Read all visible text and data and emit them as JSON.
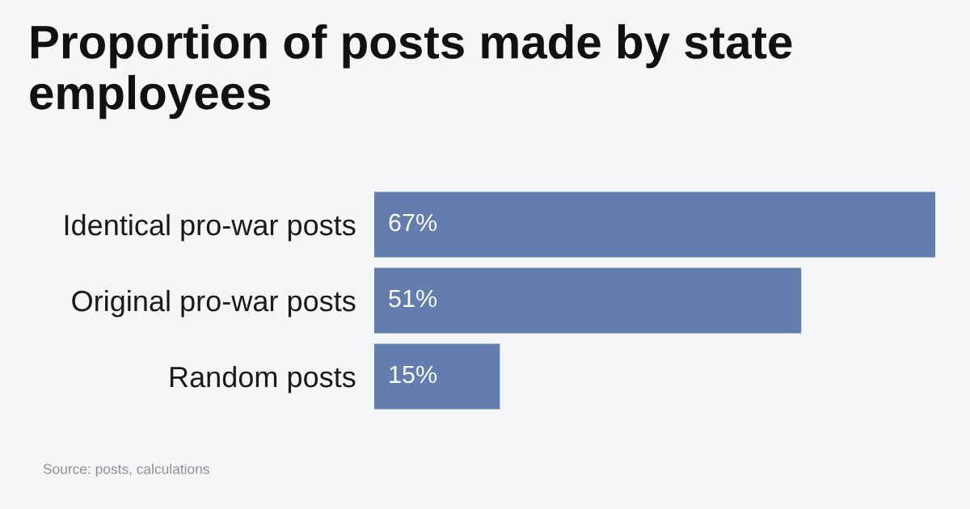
{
  "chart_data": {
    "type": "bar",
    "orientation": "horizontal",
    "title": "Proportion of posts made by state employees",
    "categories": [
      "Identical pro-war posts",
      "Original pro-war posts",
      "Random posts"
    ],
    "values": [
      67,
      51,
      15
    ],
    "value_labels": [
      "67%",
      "51%",
      "15%"
    ],
    "color": "#647daf",
    "xlim": [
      0,
      67
    ],
    "tick_labels": "y",
    "grid": false,
    "legend": false,
    "annotations": [
      "Source: posts, calculations"
    ]
  }
}
